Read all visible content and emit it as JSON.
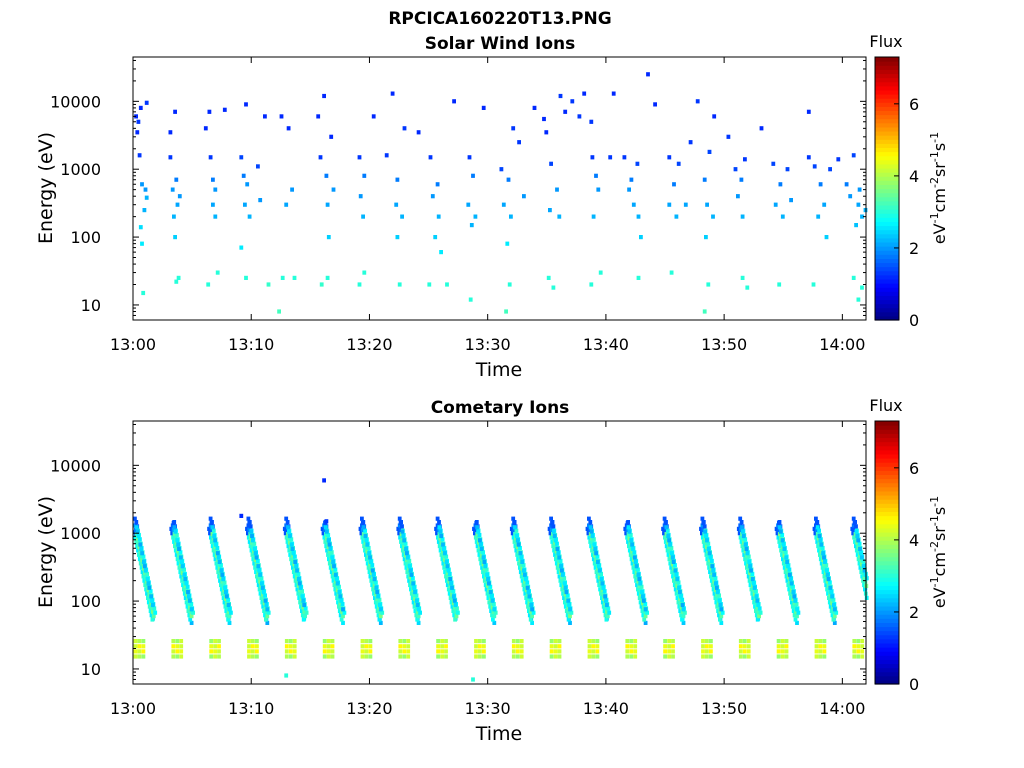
{
  "figure": {
    "filename": "RPCICA160220T13.PNG"
  },
  "chart_data": [
    {
      "type": "heatmap",
      "title": "Solar Wind Ions",
      "xlabel": "Time",
      "ylabel": "Energy (eV)",
      "x_ticks": [
        "13:00",
        "13:10",
        "13:20",
        "13:30",
        "13:40",
        "13:50",
        "14:00"
      ],
      "xlim": [
        "13:00",
        "14:02"
      ],
      "y_ticks": [
        "10",
        "100",
        "1000",
        "10000"
      ],
      "ylim": [
        6,
        45000
      ],
      "y_scale": "log",
      "colorbar": {
        "title": "Flux",
        "label": "eV-1cm-2sr-1s-1",
        "ticks": [
          "0",
          "2",
          "4",
          "6"
        ],
        "range": [
          0,
          7.3
        ],
        "colormap": "jet"
      },
      "description_of_data": "sparse isolated pixels across full time range; cyan/blue flux 1.5-3 at 10-10000 eV",
      "cells_notation": "[minute, energy eV, flux]",
      "cells": [
        [
          0.1,
          6000,
          1.2
        ],
        [
          0.3,
          5000,
          1.3
        ],
        [
          0.5,
          8000,
          1.2
        ],
        [
          1.0,
          9500,
          1.3
        ],
        [
          0.2,
          3500,
          1.2
        ],
        [
          0.4,
          1600,
          1.3
        ],
        [
          0.6,
          600,
          2.0
        ],
        [
          0.9,
          500,
          2.0
        ],
        [
          1.0,
          380,
          2.2
        ],
        [
          0.8,
          250,
          2.2
        ],
        [
          0.5,
          140,
          2.5
        ],
        [
          0.6,
          80,
          2.6
        ],
        [
          0.7,
          15,
          3.0
        ],
        [
          3.0,
          3500,
          1.2
        ],
        [
          3.5,
          700,
          1.8
        ],
        [
          3.2,
          500,
          2.0
        ],
        [
          3.8,
          400,
          2.0
        ],
        [
          3.6,
          300,
          2.1
        ],
        [
          3.3,
          200,
          2.2
        ],
        [
          3.7,
          25,
          3.0
        ],
        [
          3.5,
          22,
          3.0
        ],
        [
          3.4,
          100,
          2.4
        ],
        [
          3.4,
          7000,
          1.2
        ],
        [
          3.0,
          1500,
          1.3
        ],
        [
          6.6,
          700,
          1.8
        ],
        [
          6.4,
          1500,
          1.3
        ],
        [
          6.8,
          500,
          2.0
        ],
        [
          6.6,
          300,
          2.1
        ],
        [
          6.3,
          7000,
          1.2
        ],
        [
          6.8,
          200,
          2.2
        ],
        [
          7.6,
          7500,
          1.2
        ],
        [
          6.2,
          20,
          3.0
        ],
        [
          7.0,
          30,
          3.0
        ],
        [
          9.0,
          1500,
          1.4
        ],
        [
          9.2,
          800,
          1.8
        ],
        [
          9.5,
          600,
          2.0
        ],
        [
          9.3,
          300,
          2.1
        ],
        [
          9.7,
          200,
          2.2
        ],
        [
          9.0,
          70,
          2.6
        ],
        [
          9.4,
          25,
          3.0
        ],
        [
          9.4,
          9000,
          1.2
        ],
        [
          10.4,
          1100,
          1.4
        ],
        [
          10.6,
          350,
          2.0
        ],
        [
          11.0,
          6000,
          1.2
        ],
        [
          11.3,
          20,
          3.1
        ],
        [
          12.4,
          6000,
          1.2
        ],
        [
          13.0,
          4000,
          1.2
        ],
        [
          13.3,
          500,
          2.0
        ],
        [
          12.8,
          300,
          2.1
        ],
        [
          13.5,
          25,
          3.0
        ],
        [
          12.5,
          25,
          3.0
        ],
        [
          12.2,
          8,
          3.2
        ],
        [
          15.5,
          6000,
          1.2
        ],
        [
          16.0,
          12000,
          1.2
        ],
        [
          15.7,
          1500,
          1.3
        ],
        [
          16.2,
          800,
          1.8
        ],
        [
          16.3,
          300,
          2.1
        ],
        [
          16.4,
          100,
          2.4
        ],
        [
          16.3,
          25,
          3.0
        ],
        [
          15.8,
          20,
          3.1
        ],
        [
          16.8,
          500,
          2.0
        ],
        [
          16.6,
          3000,
          1.2
        ],
        [
          19.0,
          1500,
          1.3
        ],
        [
          19.4,
          800,
          1.8
        ],
        [
          19.1,
          400,
          2.0
        ],
        [
          19.3,
          200,
          2.2
        ],
        [
          19.4,
          30,
          3.0
        ],
        [
          19.0,
          20,
          3.0
        ],
        [
          20.2,
          6000,
          1.2
        ],
        [
          21.3,
          1600,
          1.3
        ],
        [
          21.8,
          13000,
          1.2
        ],
        [
          22.2,
          700,
          1.8
        ],
        [
          22.1,
          300,
          2.1
        ],
        [
          22.6,
          200,
          2.2
        ],
        [
          22.2,
          100,
          2.4
        ],
        [
          22.8,
          4000,
          1.3
        ],
        [
          22.4,
          20,
          3.0
        ],
        [
          24.0,
          3500,
          1.2
        ],
        [
          25.0,
          1500,
          1.3
        ],
        [
          25.6,
          600,
          1.8
        ],
        [
          25.2,
          400,
          2.0
        ],
        [
          25.7,
          200,
          2.2
        ],
        [
          25.4,
          100,
          2.4
        ],
        [
          25.9,
          60,
          2.6
        ],
        [
          24.9,
          20,
          3.0
        ],
        [
          26.4,
          20,
          3.0
        ],
        [
          27.0,
          10000,
          1.2
        ],
        [
          28.3,
          1500,
          1.3
        ],
        [
          28.6,
          800,
          1.8
        ],
        [
          28.2,
          300,
          2.1
        ],
        [
          28.5,
          150,
          2.2
        ],
        [
          28.8,
          200,
          2.2
        ],
        [
          28.4,
          12,
          3.0
        ],
        [
          29.5,
          8000,
          1.2
        ],
        [
          31.0,
          1000,
          1.4
        ],
        [
          31.6,
          700,
          1.8
        ],
        [
          31.2,
          300,
          2.1
        ],
        [
          31.8,
          200,
          2.2
        ],
        [
          31.5,
          80,
          2.6
        ],
        [
          31.7,
          20,
          3.0
        ],
        [
          31.4,
          8,
          3.2
        ],
        [
          32.0,
          4000,
          1.3
        ],
        [
          32.5,
          2500,
          1.3
        ],
        [
          32.9,
          400,
          2.0
        ],
        [
          33.8,
          8000,
          1.2
        ],
        [
          34.6,
          5500,
          1.2
        ],
        [
          34.8,
          3500,
          1.2
        ],
        [
          35.2,
          1200,
          1.4
        ],
        [
          35.7,
          500,
          2.0
        ],
        [
          35.1,
          250,
          2.1
        ],
        [
          35.9,
          200,
          2.2
        ],
        [
          35.0,
          25,
          3.0
        ],
        [
          35.4,
          18,
          3.0
        ],
        [
          36.0,
          12000,
          1.3
        ],
        [
          36.4,
          7000,
          1.2
        ],
        [
          37.0,
          10000,
          1.3
        ],
        [
          37.6,
          6000,
          1.3
        ],
        [
          38.0,
          13000,
          1.2
        ],
        [
          38.6,
          5000,
          1.3
        ],
        [
          38.7,
          1500,
          1.3
        ],
        [
          39.0,
          800,
          1.8
        ],
        [
          39.2,
          500,
          2.0
        ],
        [
          38.8,
          200,
          2.2
        ],
        [
          39.4,
          30,
          3.0
        ],
        [
          38.6,
          20,
          3.0
        ],
        [
          40.2,
          1500,
          1.3
        ],
        [
          40.5,
          13000,
          1.2
        ],
        [
          41.4,
          1500,
          1.3
        ],
        [
          42.0,
          700,
          1.8
        ],
        [
          41.8,
          500,
          2.0
        ],
        [
          42.5,
          1200,
          1.4
        ],
        [
          42.2,
          300,
          2.1
        ],
        [
          42.6,
          200,
          2.2
        ],
        [
          42.8,
          100,
          2.4
        ],
        [
          42.6,
          25,
          3.0
        ],
        [
          43.4,
          25000,
          1.2
        ],
        [
          44.0,
          9000,
          1.2
        ],
        [
          45.2,
          1500,
          1.3
        ],
        [
          45.6,
          600,
          1.8
        ],
        [
          45.2,
          300,
          2.1
        ],
        [
          45.8,
          200,
          2.2
        ],
        [
          45.4,
          30,
          3.0
        ],
        [
          46.0,
          1200,
          1.4
        ],
        [
          46.6,
          300,
          2.1
        ],
        [
          47.0,
          2500,
          1.3
        ],
        [
          47.6,
          10000,
          1.3
        ],
        [
          48.2,
          700,
          1.8
        ],
        [
          48.6,
          1800,
          1.4
        ],
        [
          48.4,
          300,
          2.1
        ],
        [
          48.9,
          200,
          2.2
        ],
        [
          48.3,
          100,
          2.4
        ],
        [
          48.5,
          20,
          3.0
        ],
        [
          48.2,
          8,
          3.2
        ],
        [
          49.0,
          6000,
          1.2
        ],
        [
          50.2,
          3000,
          1.3
        ],
        [
          50.8,
          1000,
          1.4
        ],
        [
          51.3,
          700,
          1.8
        ],
        [
          51.0,
          400,
          2.0
        ],
        [
          51.4,
          200,
          2.2
        ],
        [
          51.6,
          1400,
          1.3
        ],
        [
          51.4,
          25,
          3.0
        ],
        [
          51.8,
          18,
          3.0
        ],
        [
          53.0,
          4000,
          1.2
        ],
        [
          54.0,
          1200,
          1.4
        ],
        [
          54.6,
          600,
          1.8
        ],
        [
          54.2,
          300,
          2.1
        ],
        [
          54.8,
          200,
          2.2
        ],
        [
          55.2,
          1000,
          1.4
        ],
        [
          54.5,
          20,
          3.0
        ],
        [
          55.5,
          350,
          2.0
        ],
        [
          57.0,
          1500,
          1.3
        ],
        [
          57.5,
          1100,
          1.4
        ],
        [
          58.0,
          600,
          1.8
        ],
        [
          58.3,
          300,
          2.1
        ],
        [
          57.8,
          200,
          2.2
        ],
        [
          58.5,
          100,
          2.4
        ],
        [
          57.4,
          20,
          3.0
        ],
        [
          57.0,
          7000,
          1.2
        ],
        [
          58.8,
          1000,
          1.4
        ],
        [
          59.5,
          1400,
          1.3
        ],
        [
          60.2,
          600,
          1.8
        ],
        [
          60.8,
          1600,
          1.4
        ],
        [
          60.5,
          400,
          2.0
        ],
        [
          61.2,
          300,
          2.1
        ],
        [
          61.5,
          200,
          2.2
        ],
        [
          61.0,
          150,
          2.3
        ],
        [
          61.3,
          500,
          2.0
        ],
        [
          60.8,
          25,
          3.0
        ],
        [
          61.5,
          18,
          3.0
        ],
        [
          61.2,
          12,
          3.0
        ],
        [
          61.8,
          250,
          2.2
        ],
        [
          6.0,
          4000,
          1.2
        ]
      ]
    },
    {
      "type": "heatmap",
      "title": "Cometary Ions",
      "xlabel": "Time",
      "ylabel": "Energy (eV)",
      "x_ticks": [
        "13:00",
        "13:10",
        "13:20",
        "13:30",
        "13:40",
        "13:50",
        "14:00"
      ],
      "xlim": [
        "13:00",
        "14:02"
      ],
      "y_ticks": [
        "10",
        "100",
        "1000",
        "10000"
      ],
      "ylim": [
        6,
        45000
      ],
      "y_scale": "log",
      "colorbar": {
        "title": "Flux",
        "label": "eV-1cm-2sr-1s-1",
        "ticks": [
          "0",
          "2",
          "4",
          "6"
        ],
        "range": [
          0,
          7.3
        ],
        "colormap": "jet"
      },
      "description_of_data": "periodic energy-dispersed bursts every ~3.2 min from ~1200 eV down to ~100 eV, plus a persistent low-energy band at ~15-25 eV with flux 4-5",
      "bursts_start_minutes": [
        0.0,
        3.2,
        6.4,
        9.6,
        12.8,
        16.0,
        19.2,
        22.4,
        25.6,
        28.8,
        32.0,
        35.2,
        38.4,
        41.6,
        44.8,
        48.0,
        51.2,
        54.4,
        57.6,
        60.8
      ],
      "burst_shape": {
        "top_energy_ev": 1300,
        "bottom_energy_ev": 60,
        "duration_minutes": 1.6,
        "peak_flux": 3.6,
        "edge_flux": 1.5
      },
      "low_energy_band": {
        "energy_range_ev": [
          14,
          28
        ],
        "peak_flux": 4.8,
        "width_minutes": 1.0
      },
      "extra_cells": [
        [
          16.0,
          6000,
          1.2
        ],
        [
          9.0,
          1800,
          1.2
        ],
        [
          16.2,
          1500,
          1.3
        ],
        [
          12.8,
          8,
          3.0
        ],
        [
          28.6,
          7,
          3.0
        ]
      ]
    }
  ]
}
